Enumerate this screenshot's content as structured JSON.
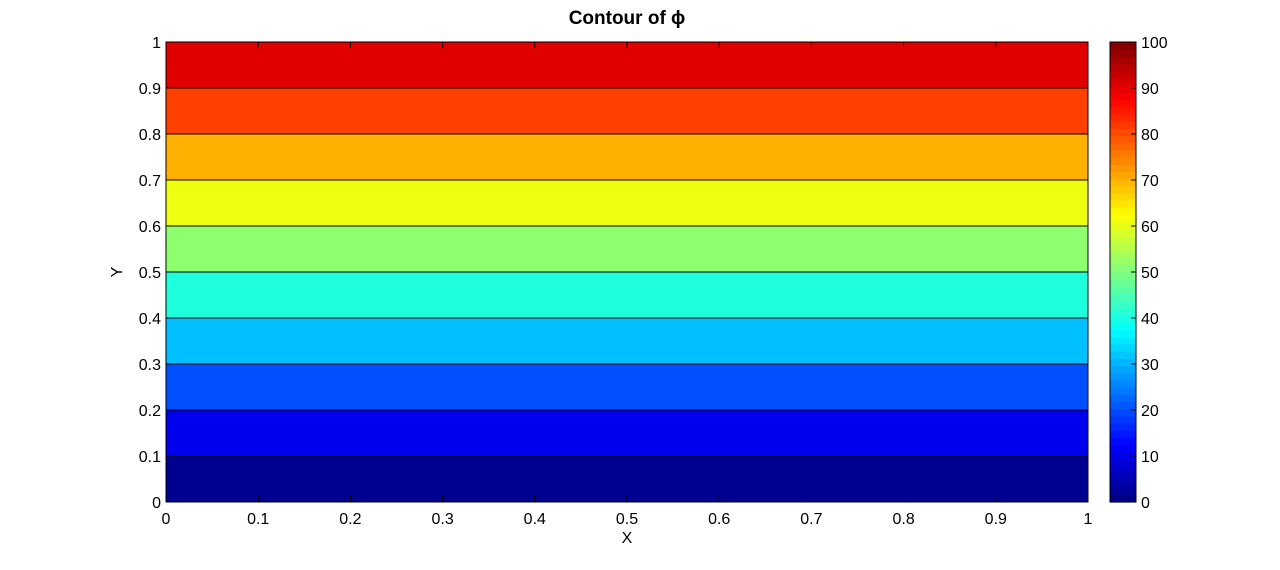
{
  "chart_data": {
    "type": "contour",
    "title": "Contour of ϕ",
    "xlabel": "X",
    "ylabel": "Y",
    "xlim": [
      0,
      1
    ],
    "ylim": [
      0,
      1
    ],
    "xticks": [
      "0",
      "0.1",
      "0.2",
      "0.3",
      "0.4",
      "0.5",
      "0.6",
      "0.7",
      "0.8",
      "0.9",
      "1"
    ],
    "yticks": [
      "0",
      "0.1",
      "0.2",
      "0.3",
      "0.4",
      "0.5",
      "0.6",
      "0.7",
      "0.8",
      "0.9",
      "1"
    ],
    "levels": [
      {
        "y_from": 0.0,
        "y_to": 0.1,
        "color": "#000090"
      },
      {
        "y_from": 0.1,
        "y_to": 0.2,
        "color": "#0000ee"
      },
      {
        "y_from": 0.2,
        "y_to": 0.3,
        "color": "#0050ff"
      },
      {
        "y_from": 0.3,
        "y_to": 0.4,
        "color": "#00c0ff"
      },
      {
        "y_from": 0.4,
        "y_to": 0.5,
        "color": "#1effde"
      },
      {
        "y_from": 0.5,
        "y_to": 0.6,
        "color": "#8eff6e"
      },
      {
        "y_from": 0.6,
        "y_to": 0.7,
        "color": "#eeff10"
      },
      {
        "y_from": 0.7,
        "y_to": 0.8,
        "color": "#ffb000"
      },
      {
        "y_from": 0.8,
        "y_to": 0.9,
        "color": "#ff4000"
      },
      {
        "y_from": 0.9,
        "y_to": 1.0,
        "color": "#e00000"
      }
    ],
    "colorbar": {
      "colormap": "jet",
      "range": [
        0,
        100
      ],
      "ticks": [
        "0",
        "10",
        "20",
        "30",
        "40",
        "50",
        "60",
        "70",
        "80",
        "90",
        "100"
      ]
    },
    "grid": false
  }
}
